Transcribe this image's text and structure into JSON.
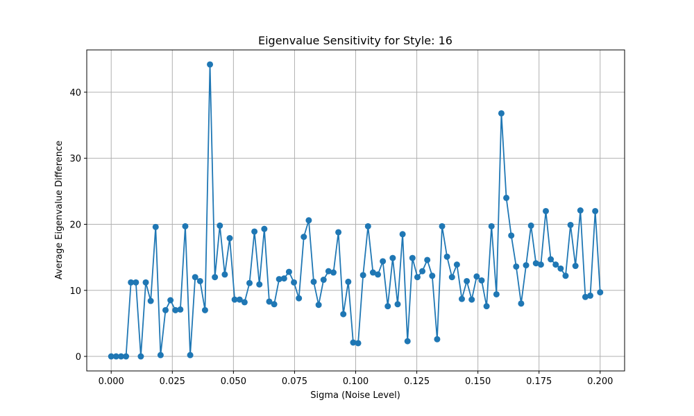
{
  "chart_data": {
    "type": "line",
    "title": "Eigenvalue Sensitivity for Style: 16",
    "xlabel": "Sigma (Noise Level)",
    "ylabel": "Average Eigenvalue Difference",
    "xlim": [
      -0.01,
      0.21
    ],
    "ylim": [
      -2.2,
      46.4
    ],
    "xticks": [
      0.0,
      0.025,
      0.05,
      0.075,
      0.1,
      0.125,
      0.15,
      0.175,
      0.2
    ],
    "xtick_labels": [
      "0.000",
      "0.025",
      "0.050",
      "0.075",
      "0.100",
      "0.125",
      "0.150",
      "0.175",
      "0.200"
    ],
    "yticks": [
      0,
      10,
      20,
      30,
      40
    ],
    "ytick_labels": [
      "0",
      "10",
      "20",
      "30",
      "40"
    ],
    "grid": true,
    "line_color": "#1f77b4",
    "marker": "circle",
    "series": [
      {
        "x": [
          0.0,
          0.00202,
          0.00404,
          0.00606,
          0.00808,
          0.0101,
          0.01212,
          0.01414,
          0.01616,
          0.01818,
          0.0202,
          0.02222,
          0.02424,
          0.02626,
          0.02828,
          0.0303,
          0.03232,
          0.03434,
          0.03636,
          0.03838,
          0.0404,
          0.04242,
          0.04444,
          0.04646,
          0.04848,
          0.05051,
          0.05253,
          0.05455,
          0.05657,
          0.05859,
          0.06061,
          0.06263,
          0.06465,
          0.06667,
          0.06869,
          0.07071,
          0.07273,
          0.07475,
          0.07677,
          0.07879,
          0.08081,
          0.08283,
          0.08485,
          0.08687,
          0.08889,
          0.09091,
          0.09293,
          0.09495,
          0.09697,
          0.09899,
          0.10101,
          0.10303,
          0.10505,
          0.10707,
          0.10909,
          0.11111,
          0.11313,
          0.11515,
          0.11717,
          0.11919,
          0.12121,
          0.12323,
          0.12525,
          0.12727,
          0.12929,
          0.13131,
          0.13333,
          0.13535,
          0.13737,
          0.13939,
          0.14141,
          0.14343,
          0.14545,
          0.14747,
          0.14949,
          0.15152,
          0.15354,
          0.15556,
          0.15758,
          0.1596,
          0.16162,
          0.16364,
          0.16566,
          0.16768,
          0.1697,
          0.17172,
          0.17374,
          0.17576,
          0.17778,
          0.1798,
          0.18182,
          0.18384,
          0.18586,
          0.18788,
          0.1899,
          0.19192,
          0.19394,
          0.19596,
          0.19798,
          0.2
        ],
        "y": [
          0.0,
          0.0,
          0.0,
          0.0,
          11.2,
          11.2,
          0.0,
          11.2,
          8.4,
          19.6,
          0.2,
          7.0,
          8.5,
          7.0,
          7.1,
          19.7,
          0.2,
          12.0,
          11.4,
          7.0,
          44.2,
          12.0,
          19.8,
          12.4,
          17.9,
          8.6,
          8.6,
          8.2,
          11.1,
          18.9,
          10.9,
          19.3,
          8.3,
          7.9,
          11.7,
          11.8,
          12.8,
          11.2,
          8.8,
          18.1,
          20.6,
          11.3,
          7.8,
          11.6,
          12.9,
          12.7,
          18.8,
          6.4,
          11.3,
          2.1,
          2.0,
          12.3,
          19.7,
          12.7,
          12.4,
          14.4,
          7.6,
          14.9,
          7.9,
          18.5,
          2.3,
          14.9,
          12.0,
          12.9,
          14.6,
          12.2,
          2.6,
          19.7,
          15.1,
          12.0,
          13.9,
          8.7,
          11.4,
          8.6,
          12.1,
          11.5,
          7.6,
          19.7,
          9.4,
          36.8,
          24.0,
          18.3,
          13.6,
          8.0,
          13.8,
          19.8,
          14.1,
          13.9,
          22.0,
          14.7,
          13.9,
          13.3,
          12.2,
          19.9,
          13.7,
          22.1,
          9.0,
          9.2,
          22.0,
          9.7
        ]
      }
    ]
  }
}
